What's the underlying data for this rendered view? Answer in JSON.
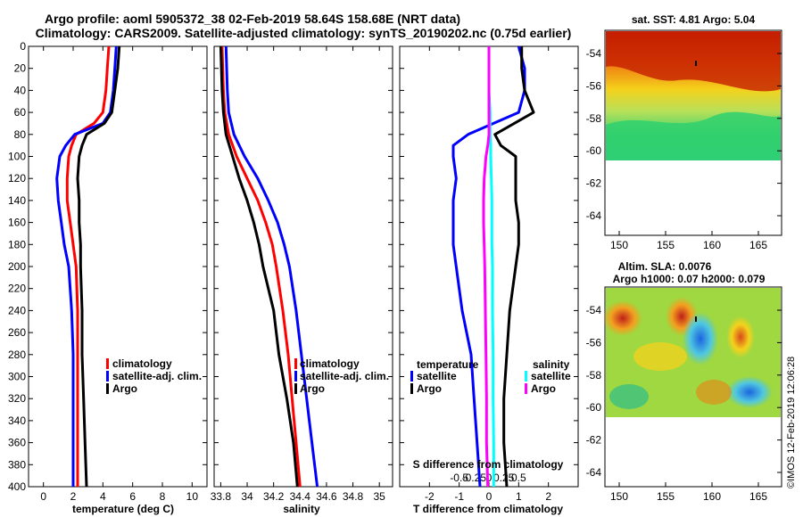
{
  "header": {
    "title_line1": "Argo profile: aoml 5905372_38 02-Feb-2019 58.64S 158.68E (NRT data)",
    "title_line2": "Climatology: CARS2009. Satellite-adjusted climatology: synTS_20190202.nc (0.75d earlier)"
  },
  "colors": {
    "climatology": "#ff0000",
    "satellite": "#0000ff",
    "argo": "#000000",
    "sat_salinity": "#00ffff",
    "argo_salinity": "#ff00ff"
  },
  "chart_data": [
    {
      "id": "temperature",
      "type": "line",
      "xlabel": "temperature (deg C)",
      "xlim": [
        -1,
        11
      ],
      "xticks": [
        "0",
        "2",
        "4",
        "6",
        "8",
        "10"
      ],
      "ylim": [
        400,
        0
      ],
      "yticks": [
        "0",
        "20",
        "40",
        "60",
        "80",
        "100",
        "120",
        "140",
        "160",
        "180",
        "200",
        "220",
        "240",
        "260",
        "280",
        "300",
        "320",
        "340",
        "360",
        "380",
        "400"
      ],
      "legend": [
        "climatology",
        "satellite-adj. clim.",
        "Argo"
      ],
      "depth": [
        0,
        20,
        40,
        60,
        70,
        80,
        90,
        100,
        120,
        140,
        160,
        180,
        200,
        240,
        280,
        320,
        360,
        400
      ],
      "series": [
        {
          "name": "climatology",
          "color": "#ff0000",
          "values": [
            4.4,
            4.3,
            4.2,
            4.0,
            3.4,
            2.2,
            1.9,
            1.7,
            1.6,
            1.6,
            1.8,
            2.0,
            2.2,
            2.3,
            2.3,
            2.3,
            2.3,
            2.3
          ]
        },
        {
          "name": "satellite-adj. clim.",
          "color": "#0000ff",
          "values": [
            4.9,
            4.8,
            4.7,
            4.5,
            4.0,
            2.1,
            1.5,
            1.1,
            0.9,
            1.0,
            1.2,
            1.4,
            1.7,
            1.9,
            2.0,
            2.0,
            2.0,
            2.0
          ]
        },
        {
          "name": "Argo",
          "color": "#000000",
          "values": [
            5.1,
            5.0,
            4.8,
            4.6,
            4.1,
            2.9,
            2.6,
            2.4,
            2.3,
            2.4,
            2.4,
            2.5,
            2.5,
            2.6,
            2.6,
            2.7,
            2.8,
            2.9
          ]
        }
      ]
    },
    {
      "id": "salinity",
      "type": "line",
      "xlabel": "salinity",
      "xlim": [
        33.75,
        35.1
      ],
      "xticks": [
        "33.8",
        "34",
        "34.2",
        "34.4",
        "34.6",
        "34.8",
        "35"
      ],
      "ylim": [
        400,
        0
      ],
      "legend": [
        "climatology",
        "satellite-adj. clim.",
        "Argo"
      ],
      "depth": [
        0,
        40,
        60,
        80,
        100,
        120,
        140,
        160,
        180,
        200,
        240,
        280,
        320,
        360,
        400
      ],
      "series": [
        {
          "name": "climatology",
          "color": "#ff0000",
          "values": [
            33.81,
            33.82,
            33.83,
            33.86,
            33.92,
            34.0,
            34.08,
            34.14,
            34.19,
            34.22,
            34.27,
            34.31,
            34.34,
            34.37,
            34.4
          ]
        },
        {
          "name": "satellite-adj. clim.",
          "color": "#0000ff",
          "values": [
            33.84,
            33.85,
            33.86,
            33.9,
            33.98,
            34.08,
            34.16,
            34.23,
            34.28,
            34.32,
            34.37,
            34.41,
            34.45,
            34.49,
            34.53
          ]
        },
        {
          "name": "Argo",
          "color": "#000000",
          "values": [
            33.8,
            33.81,
            33.82,
            33.84,
            33.89,
            33.94,
            34.0,
            34.05,
            34.09,
            34.12,
            34.2,
            34.24,
            34.3,
            34.35,
            34.38
          ]
        }
      ]
    },
    {
      "id": "difference",
      "type": "line",
      "xlabel": "T difference from climatology",
      "xlabel_top": "S difference from climatology",
      "xlim": [
        -3,
        3
      ],
      "xticks": [
        "-2",
        "-1",
        "0",
        "1",
        "2"
      ],
      "xticks_top": [
        "-0.5",
        "-0.25",
        "0",
        "0.25",
        "0.5"
      ],
      "ylim": [
        400,
        0
      ],
      "legend_temperature_title": "temperature",
      "legend_salinity_title": "salinity",
      "legend_temperature": [
        "satellite",
        "Argo"
      ],
      "legend_salinity": [
        "satellite",
        "Argo"
      ],
      "depth": [
        0,
        20,
        40,
        60,
        80,
        90,
        100,
        120,
        140,
        160,
        180,
        200,
        240,
        280,
        320,
        360,
        400
      ],
      "series": [
        {
          "name": "T satellite",
          "color": "#0000ff",
          "values": [
            1.0,
            1.2,
            1.2,
            1.0,
            -0.7,
            -1.2,
            -1.2,
            -1.1,
            -1.2,
            -1.2,
            -1.2,
            -1.1,
            -0.9,
            -0.6,
            -0.5,
            -0.4,
            -0.3
          ]
        },
        {
          "name": "T Argo",
          "color": "#000000",
          "values": [
            1.1,
            1.1,
            1.2,
            1.5,
            0.2,
            0.4,
            0.9,
            0.9,
            0.9,
            1.0,
            1.0,
            0.9,
            0.7,
            0.6,
            0.5,
            0.5,
            0.6
          ]
        },
        {
          "name": "S satellite",
          "color": "#00ffff",
          "values": [
            0.0,
            0.0,
            0.0,
            0.02,
            0.02,
            0.03,
            0.03,
            0.04,
            0.05,
            0.05,
            0.05,
            0.06,
            0.06,
            0.07,
            0.07,
            0.08,
            0.08
          ]
        },
        {
          "name": "S Argo",
          "color": "#ff00ff",
          "values": [
            0.0,
            0.0,
            0.0,
            0.0,
            0.0,
            -0.02,
            -0.05,
            -0.08,
            -0.09,
            -0.09,
            -0.08,
            -0.07,
            -0.06,
            -0.05,
            -0.04,
            -0.04,
            -0.02
          ]
        }
      ]
    }
  ],
  "maps": {
    "sst": {
      "title": "sat. SST: 4.81 Argo: 5.04",
      "yticks": [
        "-54",
        "-56",
        "-58",
        "-60",
        "-62",
        "-64"
      ],
      "xticks": [
        "150",
        "155",
        "160",
        "165"
      ]
    },
    "sla": {
      "title_line1": "Altim. SLA: 0.0076",
      "title_line2": "Argo h1000: 0.07 h2000: 0.079",
      "yticks": [
        "-54",
        "-56",
        "-58",
        "-60",
        "-62",
        "-64"
      ],
      "xticks": [
        "150",
        "155",
        "160",
        "165"
      ]
    }
  },
  "footer": {
    "credit": "©IMOS 12-Feb-2019 12:06:28"
  }
}
